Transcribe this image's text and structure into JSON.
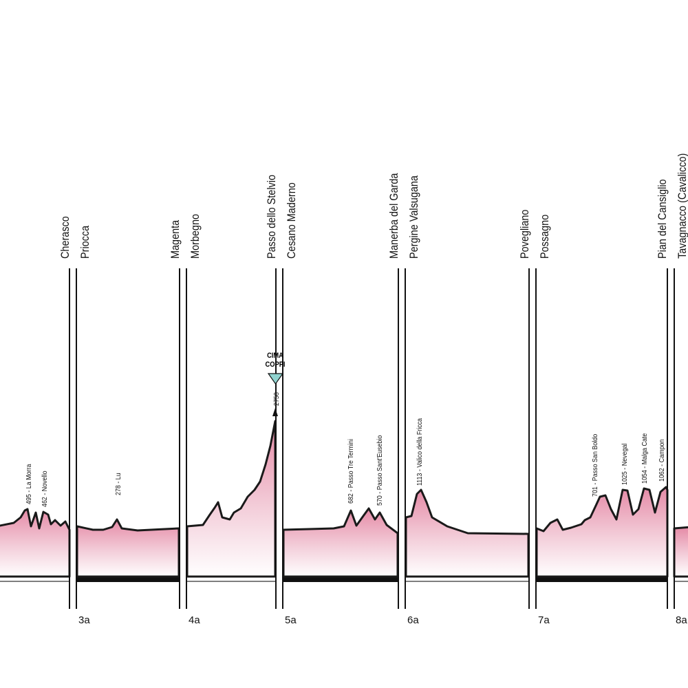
{
  "stages": [
    {
      "end": "Cherasco"
    },
    {
      "number": "3a",
      "start": "Priocca",
      "end": "Magenta"
    },
    {
      "number": "4a",
      "start": "Morbegno",
      "end": "Passo dello Stelvio"
    },
    {
      "number": "5a",
      "start": "Cesano Maderno",
      "end": "Manerba del Garda"
    },
    {
      "number": "6a",
      "start": "Pergine Valsugana",
      "end": "Povegliano"
    },
    {
      "number": "7a",
      "start": "Possagno",
      "end": "Pian del Cansiglio"
    },
    {
      "number": "8a",
      "start": "Tavagnacco (Cavalicco)"
    }
  ],
  "climbs": [
    "495 - La Morra",
    "462 - Novello",
    "278 - Lu",
    "682 - Passo Tre Termini",
    "570 - Passo Sant'Eusebio",
    "1113 - Valico della Fricca",
    "701 - Passo San Boldo",
    "1025 - Nevegal",
    "1054 - Malga Cate",
    "1062 - Campon"
  ],
  "summit": {
    "badge": [
      "CIMA",
      "COPPI"
    ],
    "altitude": 2758
  }
}
